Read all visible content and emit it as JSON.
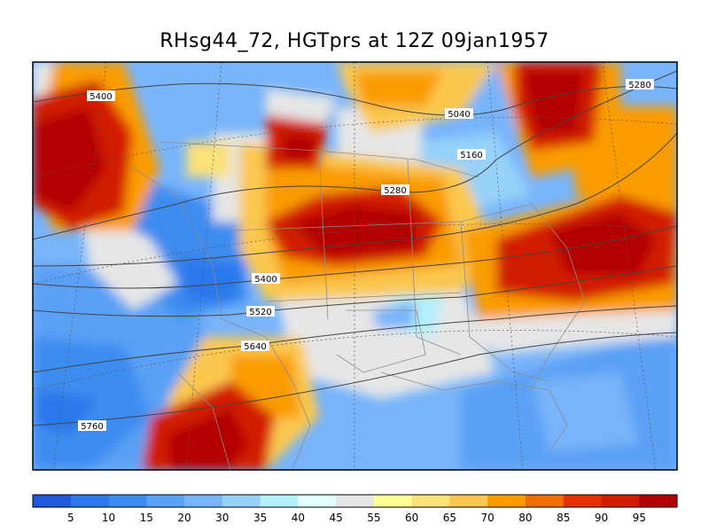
{
  "title": "RHsg44_72, HGTprs at 12Z  09jan1957",
  "contour_labels": [
    "5400",
    "5040",
    "5280",
    "5160",
    "5280",
    "5400",
    "5520",
    "5640",
    "5760"
  ],
  "colorbar": {
    "colors": [
      "#1e5adc",
      "#2a78ec",
      "#3c8cf0",
      "#5aa0f5",
      "#78b4fa",
      "#96d2fa",
      "#b4f0fa",
      "#e1ffff",
      "#e6e6e6",
      "#ffff96",
      "#fae178",
      "#fac850",
      "#fa9c00",
      "#f06e00",
      "#e63200",
      "#d21e00",
      "#b40000"
    ],
    "labels": [
      "5",
      "10",
      "15",
      "20",
      "30",
      "35",
      "40",
      "45",
      "55",
      "60",
      "65",
      "70",
      "80",
      "85",
      "90",
      "95"
    ]
  }
}
